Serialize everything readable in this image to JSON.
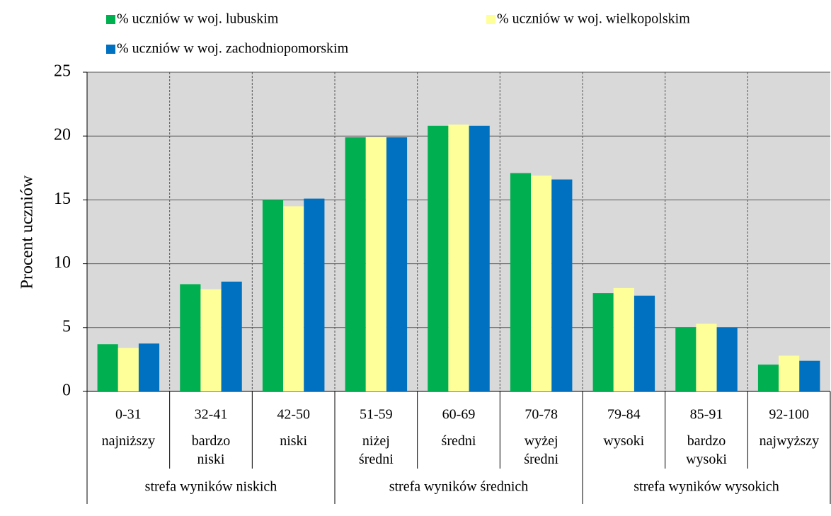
{
  "chart_data": {
    "type": "bar",
    "y_label": "Procent uczniów",
    "categories": [
      "0-31",
      "32-41",
      "42-50",
      "51-59",
      "60-69",
      "70-78",
      "79-84",
      "85-91",
      "92-100"
    ],
    "subcategories": [
      "najniższy",
      "bardzo niski",
      "niski",
      "niżej średni",
      "średni",
      "wyżej średni",
      "wysoki",
      "bardzo wysoki",
      "najwyższy"
    ],
    "groups": [
      "strefa wyników niskich",
      "strefa wyników średnich",
      "strefa wyników wysokich"
    ],
    "series": [
      {
        "name": "% uczniów w woj. lubuskim",
        "color": "#00b050",
        "values": [
          3.7,
          8.4,
          15.0,
          19.9,
          20.8,
          17.1,
          7.7,
          5.0,
          2.1
        ]
      },
      {
        "name": "% uczniów w woj. wielkopolskim",
        "color": "#ffff99",
        "values": [
          3.4,
          8.0,
          14.5,
          19.9,
          20.9,
          16.9,
          8.1,
          5.3,
          2.8
        ]
      },
      {
        "name": "% uczniów w woj. zachodniopomorskim",
        "color": "#0070c0",
        "values": [
          3.75,
          8.6,
          15.1,
          19.9,
          20.8,
          16.6,
          7.5,
          5.0,
          2.4
        ]
      }
    ],
    "ylim": [
      0,
      25
    ],
    "yticks": [
      0,
      5,
      10,
      15,
      20,
      25
    ],
    "grid": true,
    "legend": "top"
  }
}
